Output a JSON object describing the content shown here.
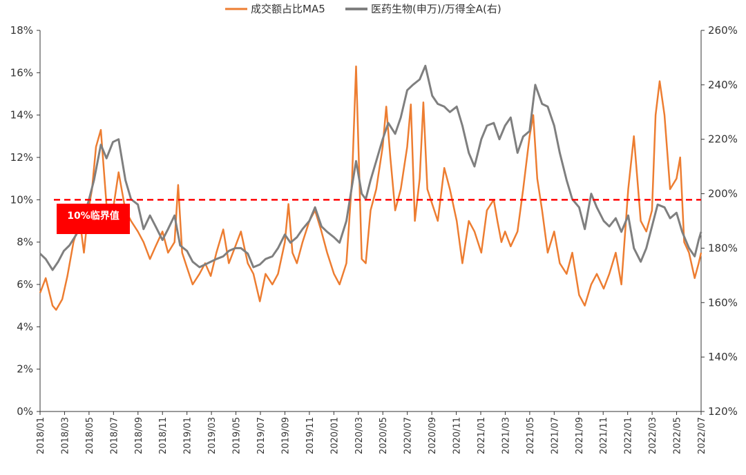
{
  "chart_data": {
    "type": "line",
    "legend": {
      "position": "top-center"
    },
    "grid": false,
    "series": [
      {
        "name": "成交额占比MA5",
        "axis": "left",
        "color": "#ED7D31",
        "points": [
          [
            "2018-01-01",
            5.6
          ],
          [
            "2018-01-15",
            6.3
          ],
          [
            "2018-02-01",
            5.0
          ],
          [
            "2018-02-10",
            4.8
          ],
          [
            "2018-02-25",
            5.3
          ],
          [
            "2018-03-10",
            6.4
          ],
          [
            "2018-03-25",
            8.0
          ],
          [
            "2018-04-10",
            9.0
          ],
          [
            "2018-04-20",
            7.5
          ],
          [
            "2018-05-01",
            9.5
          ],
          [
            "2018-05-10",
            10.5
          ],
          [
            "2018-05-20",
            12.5
          ],
          [
            "2018-06-01",
            13.3
          ],
          [
            "2018-06-10",
            11.0
          ],
          [
            "2018-06-20",
            8.5
          ],
          [
            "2018-07-01",
            9.5
          ],
          [
            "2018-07-15",
            11.3
          ],
          [
            "2018-08-01",
            9.5
          ],
          [
            "2018-08-15",
            9.0
          ],
          [
            "2018-09-01",
            8.5
          ],
          [
            "2018-09-15",
            8.0
          ],
          [
            "2018-10-01",
            7.2
          ],
          [
            "2018-10-15",
            7.8
          ],
          [
            "2018-11-01",
            8.5
          ],
          [
            "2018-11-15",
            7.5
          ],
          [
            "2018-12-01",
            8.0
          ],
          [
            "2018-12-10",
            10.7
          ],
          [
            "2018-12-20",
            7.5
          ],
          [
            "2019-01-01",
            6.8
          ],
          [
            "2019-01-15",
            6.0
          ],
          [
            "2019-02-01",
            6.5
          ],
          [
            "2019-02-15",
            7.0
          ],
          [
            "2019-03-01",
            6.4
          ],
          [
            "2019-03-15",
            7.5
          ],
          [
            "2019-04-01",
            8.6
          ],
          [
            "2019-04-15",
            7.0
          ],
          [
            "2019-05-01",
            7.8
          ],
          [
            "2019-05-15",
            8.5
          ],
          [
            "2019-06-01",
            7.0
          ],
          [
            "2019-06-15",
            6.5
          ],
          [
            "2019-07-01",
            5.2
          ],
          [
            "2019-07-15",
            6.5
          ],
          [
            "2019-08-01",
            6.0
          ],
          [
            "2019-08-15",
            6.5
          ],
          [
            "2019-09-01",
            8.0
          ],
          [
            "2019-09-10",
            9.8
          ],
          [
            "2019-09-20",
            7.5
          ],
          [
            "2019-10-01",
            7.0
          ],
          [
            "2019-10-15",
            8.0
          ],
          [
            "2019-11-01",
            9.0
          ],
          [
            "2019-11-15",
            9.5
          ],
          [
            "2019-12-01",
            8.5
          ],
          [
            "2019-12-15",
            7.5
          ],
          [
            "2020-01-01",
            6.5
          ],
          [
            "2020-01-15",
            6.0
          ],
          [
            "2020-02-01",
            7.0
          ],
          [
            "2020-02-15",
            11.0
          ],
          [
            "2020-02-25",
            16.3
          ],
          [
            "2020-03-10",
            7.2
          ],
          [
            "2020-03-20",
            7.0
          ],
          [
            "2020-04-01",
            9.5
          ],
          [
            "2020-04-15",
            10.5
          ],
          [
            "2020-05-01",
            12.5
          ],
          [
            "2020-05-10",
            14.4
          ],
          [
            "2020-05-20",
            12.0
          ],
          [
            "2020-06-01",
            9.5
          ],
          [
            "2020-06-15",
            10.5
          ],
          [
            "2020-07-01",
            12.5
          ],
          [
            "2020-07-10",
            14.5
          ],
          [
            "2020-07-20",
            9.0
          ],
          [
            "2020-08-01",
            11.0
          ],
          [
            "2020-08-10",
            14.6
          ],
          [
            "2020-08-20",
            10.5
          ],
          [
            "2020-09-01",
            9.8
          ],
          [
            "2020-09-15",
            9.0
          ],
          [
            "2020-10-01",
            11.5
          ],
          [
            "2020-10-15",
            10.5
          ],
          [
            "2020-11-01",
            9.0
          ],
          [
            "2020-11-15",
            7.0
          ],
          [
            "2020-12-01",
            9.0
          ],
          [
            "2020-12-15",
            8.5
          ],
          [
            "2021-01-01",
            7.5
          ],
          [
            "2021-01-15",
            9.5
          ],
          [
            "2021-02-01",
            10.0
          ],
          [
            "2021-02-10",
            9.0
          ],
          [
            "2021-02-20",
            8.0
          ],
          [
            "2021-03-01",
            8.5
          ],
          [
            "2021-03-15",
            7.8
          ],
          [
            "2021-04-01",
            8.5
          ],
          [
            "2021-04-15",
            10.5
          ],
          [
            "2021-05-01",
            13.0
          ],
          [
            "2021-05-10",
            14.0
          ],
          [
            "2021-05-20",
            11.0
          ],
          [
            "2021-06-01",
            9.5
          ],
          [
            "2021-06-15",
            7.5
          ],
          [
            "2021-07-01",
            8.5
          ],
          [
            "2021-07-15",
            7.0
          ],
          [
            "2021-08-01",
            6.5
          ],
          [
            "2021-08-15",
            7.5
          ],
          [
            "2021-09-01",
            5.5
          ],
          [
            "2021-09-15",
            5.0
          ],
          [
            "2021-10-01",
            6.0
          ],
          [
            "2021-10-15",
            6.5
          ],
          [
            "2021-11-01",
            5.8
          ],
          [
            "2021-11-15",
            6.5
          ],
          [
            "2021-12-01",
            7.5
          ],
          [
            "2021-12-15",
            6.0
          ],
          [
            "2022-01-01",
            10.5
          ],
          [
            "2022-01-15",
            13.0
          ],
          [
            "2022-02-01",
            9.0
          ],
          [
            "2022-02-15",
            8.5
          ],
          [
            "2022-03-01",
            9.5
          ],
          [
            "2022-03-10",
            14.0
          ],
          [
            "2022-03-20",
            15.6
          ],
          [
            "2022-04-01",
            14.0
          ],
          [
            "2022-04-15",
            10.5
          ],
          [
            "2022-05-01",
            11.0
          ],
          [
            "2022-05-10",
            12.0
          ],
          [
            "2022-05-20",
            8.0
          ],
          [
            "2022-06-01",
            7.5
          ],
          [
            "2022-06-15",
            6.3
          ],
          [
            "2022-06-25",
            7.0
          ],
          [
            "2022-07-01",
            7.5
          ]
        ]
      },
      {
        "name": "医药生物(申万)/万得全A(右)",
        "axis": "right",
        "color": "#7F7F7F",
        "points": [
          [
            "2018-01-01",
            178
          ],
          [
            "2018-01-15",
            176
          ],
          [
            "2018-02-01",
            172
          ],
          [
            "2018-02-15",
            175
          ],
          [
            "2018-03-01",
            179
          ],
          [
            "2018-03-15",
            181
          ],
          [
            "2018-04-01",
            185
          ],
          [
            "2018-04-15",
            190
          ],
          [
            "2018-05-01",
            197
          ],
          [
            "2018-05-15",
            205
          ],
          [
            "2018-06-01",
            218
          ],
          [
            "2018-06-15",
            213
          ],
          [
            "2018-07-01",
            219
          ],
          [
            "2018-07-15",
            220
          ],
          [
            "2018-08-01",
            205
          ],
          [
            "2018-08-15",
            198
          ],
          [
            "2018-09-01",
            196
          ],
          [
            "2018-09-15",
            187
          ],
          [
            "2018-10-01",
            192
          ],
          [
            "2018-10-15",
            188
          ],
          [
            "2018-11-01",
            183
          ],
          [
            "2018-11-15",
            187
          ],
          [
            "2018-12-01",
            192
          ],
          [
            "2018-12-15",
            181
          ],
          [
            "2019-01-01",
            179
          ],
          [
            "2019-01-15",
            175
          ],
          [
            "2019-02-01",
            173
          ],
          [
            "2019-02-15",
            174
          ],
          [
            "2019-03-01",
            175
          ],
          [
            "2019-03-15",
            176
          ],
          [
            "2019-04-01",
            177
          ],
          [
            "2019-04-15",
            179
          ],
          [
            "2019-05-01",
            180
          ],
          [
            "2019-05-15",
            180
          ],
          [
            "2019-06-01",
            178
          ],
          [
            "2019-06-15",
            173
          ],
          [
            "2019-07-01",
            174
          ],
          [
            "2019-07-15",
            176
          ],
          [
            "2019-08-01",
            177
          ],
          [
            "2019-08-15",
            180
          ],
          [
            "2019-09-01",
            185
          ],
          [
            "2019-09-15",
            182
          ],
          [
            "2019-10-01",
            184
          ],
          [
            "2019-10-15",
            187
          ],
          [
            "2019-11-01",
            190
          ],
          [
            "2019-11-15",
            195
          ],
          [
            "2019-12-01",
            188
          ],
          [
            "2019-12-15",
            186
          ],
          [
            "2020-01-01",
            184
          ],
          [
            "2020-01-15",
            182
          ],
          [
            "2020-02-01",
            190
          ],
          [
            "2020-02-15",
            203
          ],
          [
            "2020-02-25",
            212
          ],
          [
            "2020-03-10",
            200
          ],
          [
            "2020-03-20",
            198
          ],
          [
            "2020-04-01",
            205
          ],
          [
            "2020-04-15",
            212
          ],
          [
            "2020-05-01",
            220
          ],
          [
            "2020-05-15",
            226
          ],
          [
            "2020-06-01",
            222
          ],
          [
            "2020-06-15",
            228
          ],
          [
            "2020-07-01",
            238
          ],
          [
            "2020-07-15",
            240
          ],
          [
            "2020-08-01",
            242
          ],
          [
            "2020-08-15",
            247
          ],
          [
            "2020-09-01",
            236
          ],
          [
            "2020-09-15",
            233
          ],
          [
            "2020-10-01",
            232
          ],
          [
            "2020-10-15",
            230
          ],
          [
            "2020-11-01",
            232
          ],
          [
            "2020-11-15",
            225
          ],
          [
            "2020-12-01",
            215
          ],
          [
            "2020-12-15",
            210
          ],
          [
            "2021-01-01",
            220
          ],
          [
            "2021-01-15",
            225
          ],
          [
            "2021-02-01",
            226
          ],
          [
            "2021-02-15",
            220
          ],
          [
            "2021-03-01",
            225
          ],
          [
            "2021-03-15",
            228
          ],
          [
            "2021-04-01",
            215
          ],
          [
            "2021-04-15",
            221
          ],
          [
            "2021-05-01",
            223
          ],
          [
            "2021-05-15",
            240
          ],
          [
            "2021-06-01",
            233
          ],
          [
            "2021-06-15",
            232
          ],
          [
            "2021-07-01",
            225
          ],
          [
            "2021-07-15",
            215
          ],
          [
            "2021-08-01",
            205
          ],
          [
            "2021-08-15",
            198
          ],
          [
            "2021-09-01",
            195
          ],
          [
            "2021-09-15",
            187
          ],
          [
            "2021-10-01",
            200
          ],
          [
            "2021-10-15",
            195
          ],
          [
            "2021-11-01",
            190
          ],
          [
            "2021-11-15",
            188
          ],
          [
            "2021-12-01",
            191
          ],
          [
            "2021-12-15",
            186
          ],
          [
            "2022-01-01",
            192
          ],
          [
            "2022-01-15",
            180
          ],
          [
            "2022-02-01",
            175
          ],
          [
            "2022-02-15",
            180
          ],
          [
            "2022-03-01",
            188
          ],
          [
            "2022-03-15",
            196
          ],
          [
            "2022-04-01",
            195
          ],
          [
            "2022-04-15",
            191
          ],
          [
            "2022-05-01",
            193
          ],
          [
            "2022-05-15",
            186
          ],
          [
            "2022-06-01",
            180
          ],
          [
            "2022-06-15",
            177
          ],
          [
            "2022-06-25",
            183
          ],
          [
            "2022-07-01",
            186
          ]
        ]
      }
    ],
    "reference_line": {
      "axis": "left",
      "value": 10,
      "color": "#FF0000",
      "style": "dashed"
    },
    "annotation": {
      "text": "10%临界值",
      "color": "#FF0000"
    },
    "y_left": {
      "min": 0,
      "max": 18,
      "ticks": [
        "0%",
        "2%",
        "4%",
        "6%",
        "8%",
        "10%",
        "12%",
        "14%",
        "16%",
        "18%"
      ]
    },
    "y_right": {
      "min": 120,
      "max": 260,
      "ticks": [
        "120%",
        "140%",
        "160%",
        "180%",
        "200%",
        "220%",
        "240%",
        "260%"
      ]
    },
    "x_axis": {
      "start": "2018-01-01",
      "end": "2022-07-01",
      "ticks": [
        "2018/01",
        "2018/03",
        "2018/05",
        "2018/07",
        "2018/09",
        "2018/11",
        "2019/01",
        "2019/03",
        "2019/05",
        "2019/07",
        "2019/09",
        "2019/11",
        "2020/01",
        "2020/03",
        "2020/05",
        "2020/07",
        "2020/09",
        "2020/11",
        "2021/01",
        "2021/03",
        "2021/05",
        "2021/07",
        "2021/09",
        "2021/11",
        "2022/01",
        "2022/03",
        "2022/05",
        "2022/07"
      ]
    }
  }
}
